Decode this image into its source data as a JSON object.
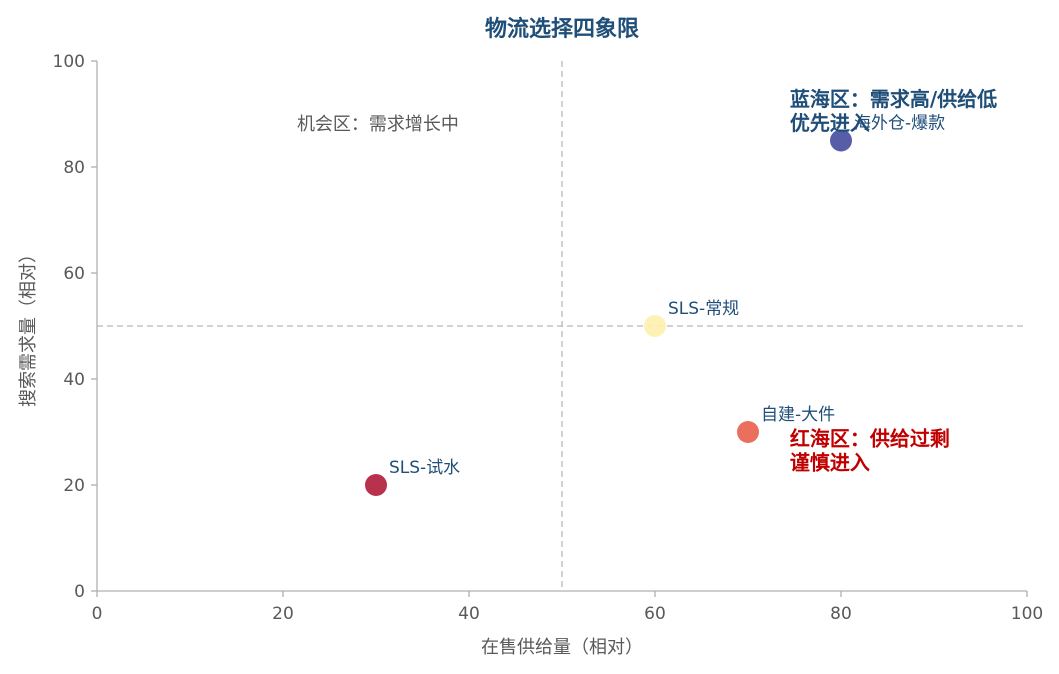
{
  "chart_data": {
    "type": "scatter",
    "title": "物流选择四象限",
    "xlabel": "在售供给量（相对）",
    "ylabel": "搜索需求量（相对）",
    "xlim": [
      0,
      100
    ],
    "ylim": [
      0,
      100
    ],
    "x_ticks": [
      "0",
      "20",
      "40",
      "60",
      "80",
      "100"
    ],
    "y_ticks": [
      "0",
      "20",
      "40",
      "60",
      "80",
      "100"
    ],
    "grid": false,
    "reference_lines": {
      "x": 50,
      "y": 50
    },
    "points": [
      {
        "name": "SLS-试水",
        "x": 30,
        "y": 20,
        "color": "#b2213f"
      },
      {
        "name": "SLS-常规",
        "x": 60,
        "y": 50,
        "color": "#fdf0b0"
      },
      {
        "name": "自建-大件",
        "x": 70,
        "y": 30,
        "color": "#e8644f"
      },
      {
        "name": "海外仓-爆款",
        "x": 80,
        "y": 85,
        "color": "#4a4fa0"
      }
    ],
    "annotations": [
      {
        "lines": [
          "机会区：需求增长中"
        ],
        "x": 21.5,
        "y": 87,
        "style": "note"
      },
      {
        "lines": [
          "蓝海区：需求高/供给低",
          "优先进入"
        ],
        "x": 74.5,
        "y": 91.5,
        "style": "blue"
      },
      {
        "lines": [
          "红海区：供给过剩",
          "谨慎进入"
        ],
        "x": 74.5,
        "y": 27.5,
        "style": "red"
      }
    ],
    "colors": {
      "axis": "#b0b0b0",
      "refline": "#b8b8b8",
      "title": "#1f4e79",
      "label": "#1f4e79",
      "warn": "#c00000"
    }
  }
}
